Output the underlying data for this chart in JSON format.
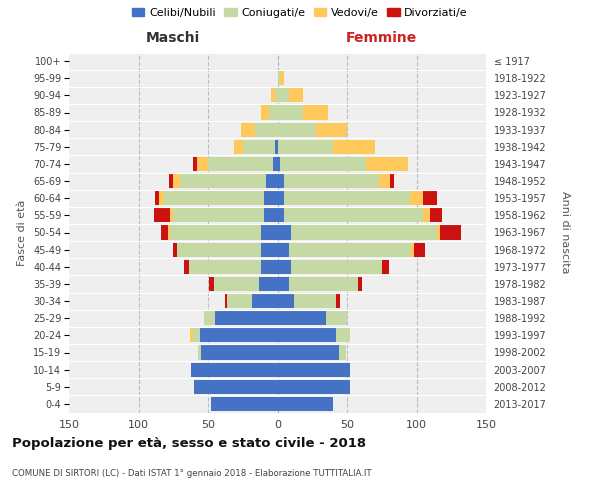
{
  "age_groups": [
    "100+",
    "95-99",
    "90-94",
    "85-89",
    "80-84",
    "75-79",
    "70-74",
    "65-69",
    "60-64",
    "55-59",
    "50-54",
    "45-49",
    "40-44",
    "35-39",
    "30-34",
    "25-29",
    "20-24",
    "15-19",
    "10-14",
    "5-9",
    "0-4"
  ],
  "birth_years": [
    "≤ 1917",
    "1918-1922",
    "1923-1927",
    "1928-1932",
    "1933-1937",
    "1938-1942",
    "1943-1947",
    "1948-1952",
    "1953-1957",
    "1958-1962",
    "1963-1967",
    "1968-1972",
    "1973-1977",
    "1978-1982",
    "1983-1987",
    "1988-1992",
    "1993-1997",
    "1998-2002",
    "2003-2007",
    "2008-2012",
    "2013-2017"
  ],
  "colors": {
    "celibe": "#4472C4",
    "coniugato": "#C5D9A4",
    "vedovo": "#FFC85A",
    "divorziato": "#CC1111"
  },
  "maschi": {
    "celibe": [
      0,
      0,
      0,
      0,
      0,
      2,
      3,
      8,
      10,
      10,
      12,
      12,
      12,
      13,
      18,
      45,
      56,
      55,
      62,
      60,
      48
    ],
    "coniugato": [
      0,
      0,
      2,
      6,
      16,
      23,
      47,
      62,
      72,
      65,
      65,
      60,
      52,
      33,
      18,
      8,
      5,
      2,
      0,
      0,
      0
    ],
    "vedovo": [
      0,
      0,
      3,
      6,
      10,
      6,
      8,
      5,
      3,
      2,
      2,
      0,
      0,
      0,
      0,
      0,
      2,
      0,
      0,
      0,
      0
    ],
    "divorziato": [
      0,
      0,
      0,
      0,
      0,
      0,
      3,
      3,
      3,
      12,
      5,
      3,
      3,
      3,
      2,
      0,
      0,
      0,
      0,
      0,
      0
    ]
  },
  "femmine": {
    "nubile": [
      0,
      0,
      0,
      0,
      0,
      0,
      2,
      5,
      5,
      5,
      10,
      8,
      10,
      8,
      12,
      35,
      42,
      44,
      52,
      52,
      40
    ],
    "coniugata": [
      0,
      2,
      8,
      18,
      28,
      40,
      62,
      68,
      90,
      100,
      105,
      88,
      65,
      50,
      30,
      15,
      10,
      5,
      0,
      0,
      0
    ],
    "vedova": [
      0,
      3,
      10,
      18,
      22,
      30,
      30,
      8,
      10,
      5,
      2,
      2,
      0,
      0,
      0,
      0,
      0,
      0,
      0,
      0,
      0
    ],
    "divorziata": [
      0,
      0,
      0,
      0,
      0,
      0,
      0,
      3,
      10,
      8,
      15,
      8,
      5,
      3,
      3,
      0,
      0,
      0,
      0,
      0,
      0
    ]
  },
  "xlim": 150,
  "title": "Popolazione per età, sesso e stato civile - 2018",
  "subtitle": "COMUNE DI SIRTORI (LC) - Dati ISTAT 1° gennaio 2018 - Elaborazione TUTTITALIA.IT",
  "ylabel_left": "Fasce di età",
  "ylabel_right": "Anni di nascita",
  "xlabel_left": "Maschi",
  "xlabel_right": "Femmine",
  "legend_labels": [
    "Celibi/Nubili",
    "Coniugati/e",
    "Vedovi/e",
    "Divorziati/e"
  ],
  "bg_color": "#efefef",
  "bar_height": 0.82,
  "xticks": [
    -150,
    -100,
    -50,
    0,
    50,
    100,
    150
  ],
  "xtick_labels": [
    "150",
    "100",
    "50",
    "0",
    "50",
    "100",
    "150"
  ]
}
